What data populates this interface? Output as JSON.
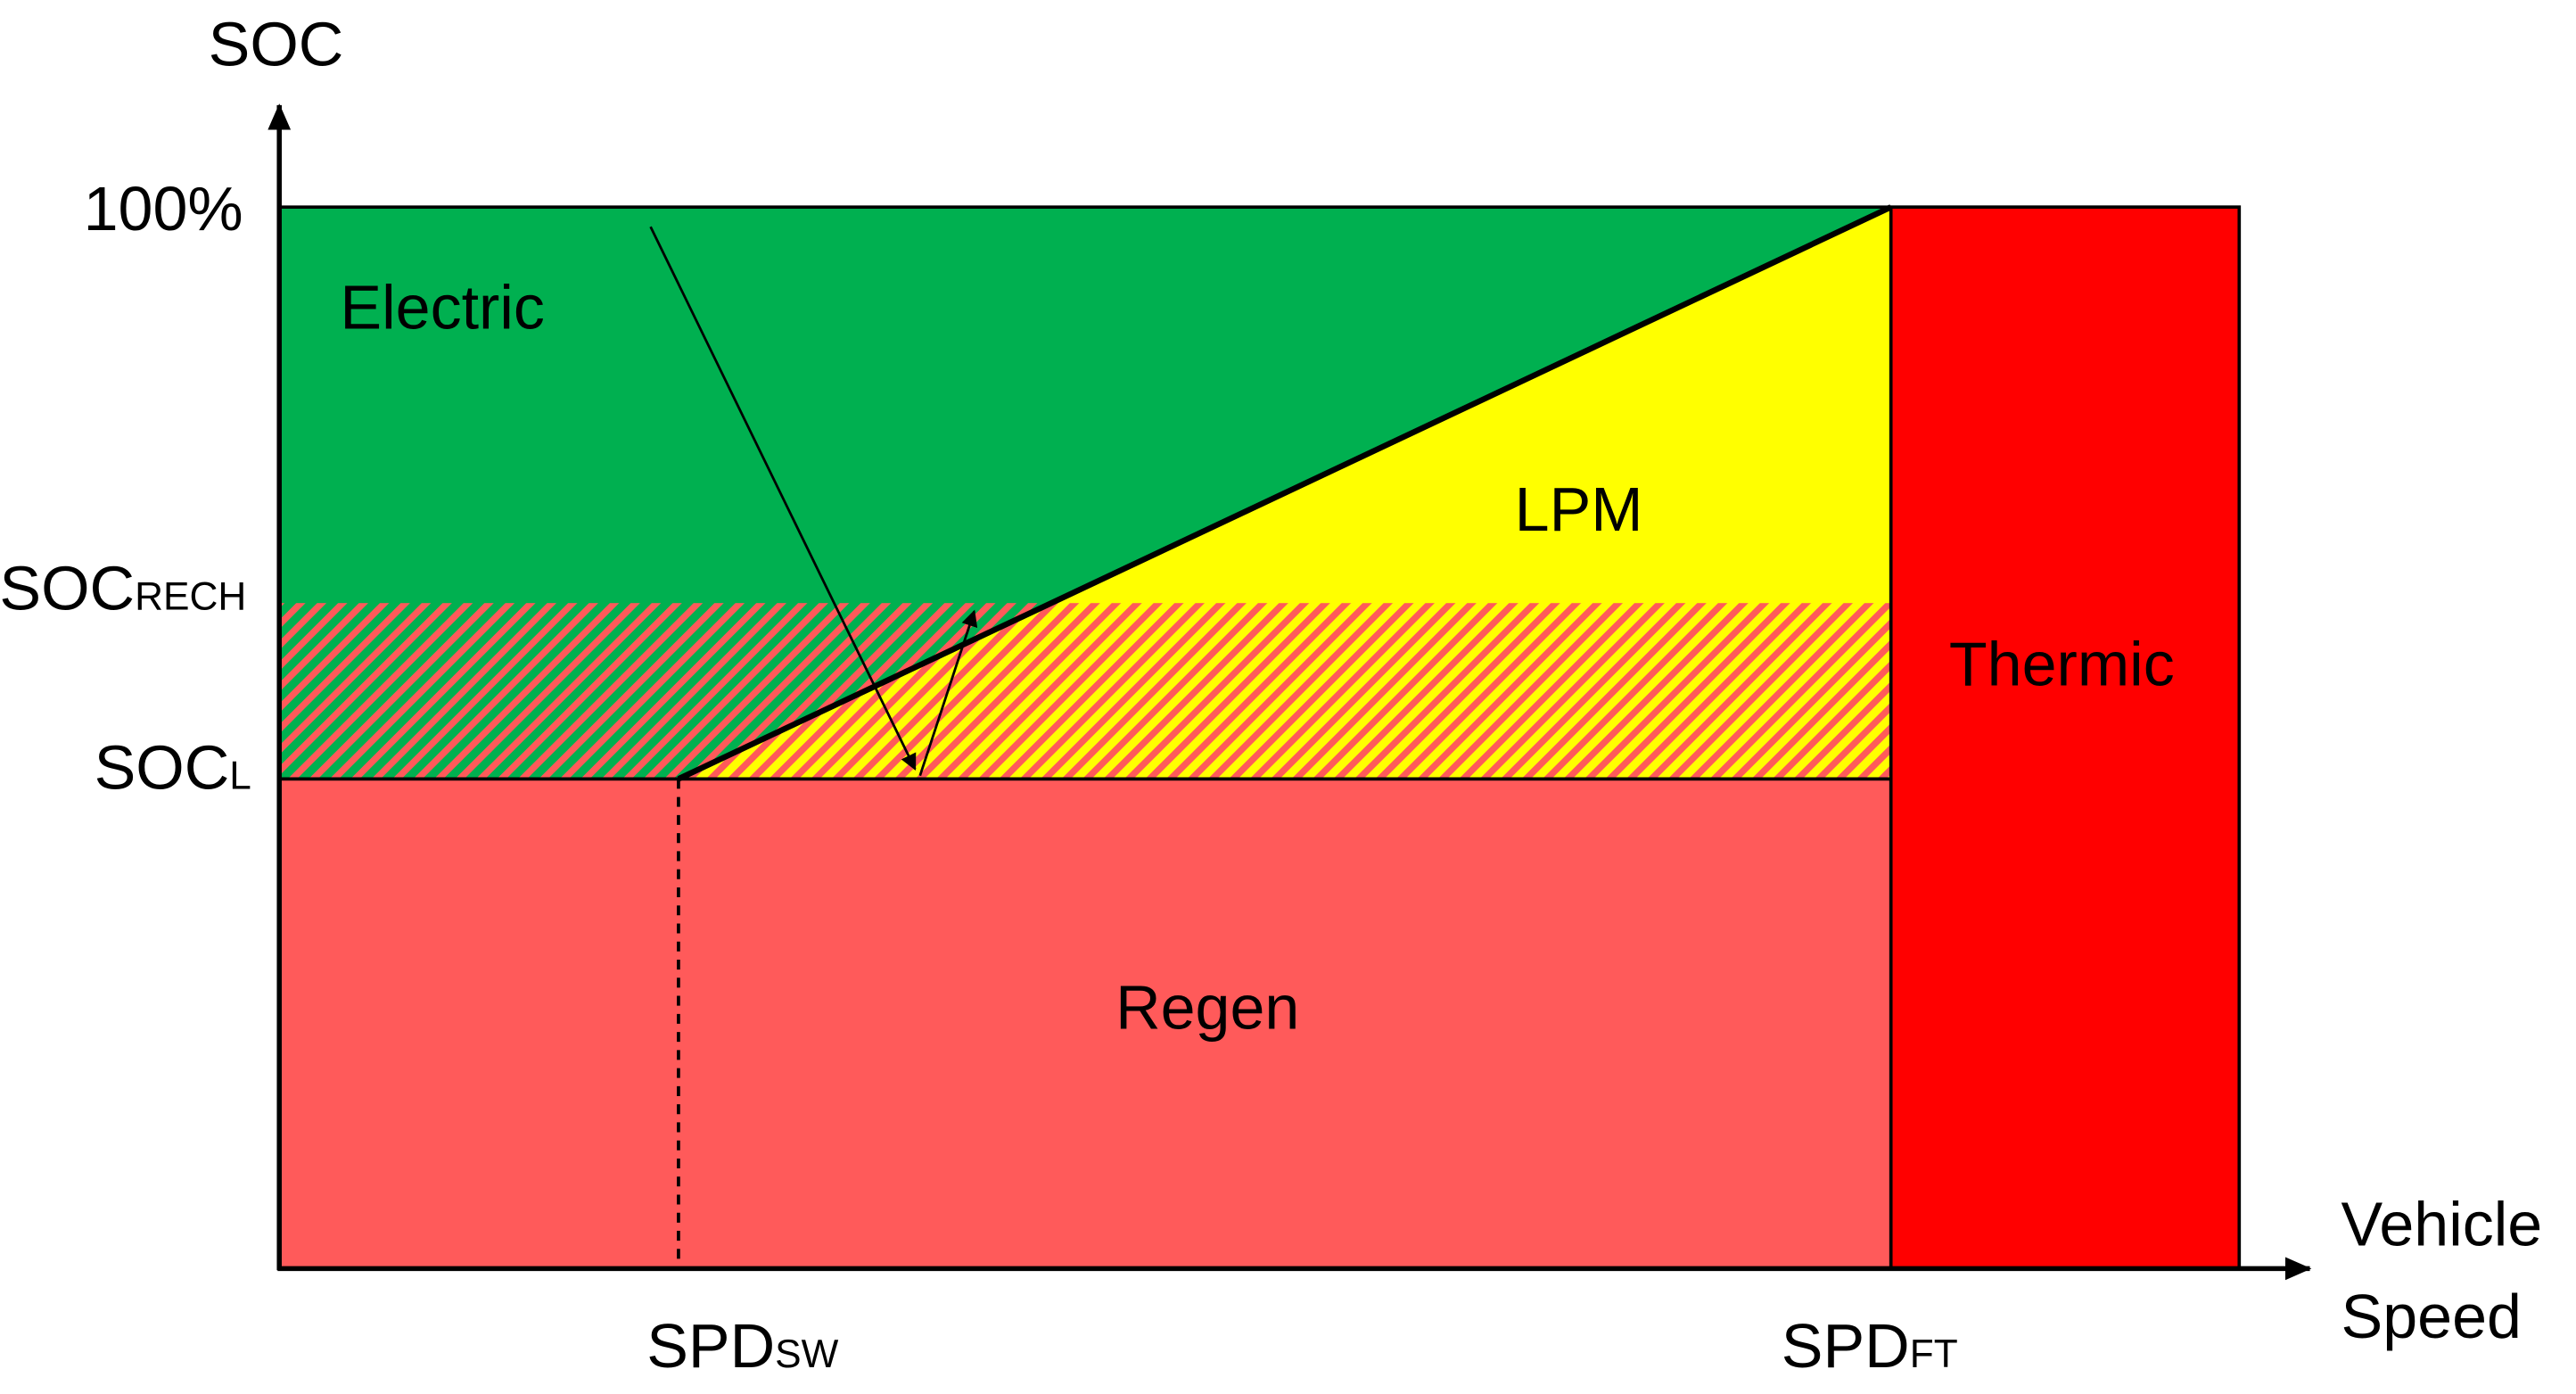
{
  "y_axis": {
    "title": "SOC",
    "levels": [
      {
        "main": "100%"
      },
      {
        "main": "SOC",
        "sub": "RECH"
      },
      {
        "main": "SOC",
        "sub": "L"
      }
    ]
  },
  "x_axis": {
    "title": [
      "Vehicle",
      "Speed"
    ],
    "levels": [
      {
        "main": "SPD",
        "sub": "SW"
      },
      {
        "main": "SPD",
        "sub": "FT"
      }
    ]
  },
  "regions": [
    "Electric",
    "LPM",
    "Thermic",
    "Regen"
  ]
}
